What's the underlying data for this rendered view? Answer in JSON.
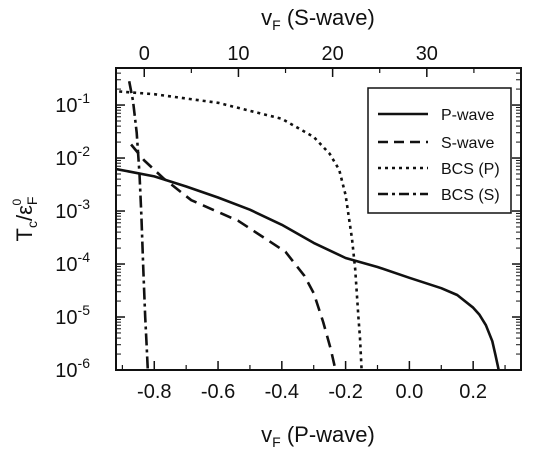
{
  "chart_data": {
    "type": "line",
    "x_label": "v_F (P-wave)",
    "x2_label": "v_F (S-wave)",
    "y_label": "T_c/ε_F^0",
    "x_range": [
      -0.92,
      0.35
    ],
    "x2_range": [
      -3.0,
      40.0
    ],
    "y_range": [
      1e-06,
      0.5
    ],
    "y_scale": "log",
    "x_ticks": [
      "-0.8",
      "-0.6",
      "-0.4",
      "-0.2",
      "0.0",
      "0.2"
    ],
    "x2_ticks": [
      "0",
      "10",
      "20",
      "30"
    ],
    "y_ticks": [
      {
        "base": "10",
        "exp": "-1",
        "value": 0.1
      },
      {
        "base": "10",
        "exp": "-2",
        "value": 0.01
      },
      {
        "base": "10",
        "exp": "-3",
        "value": 0.001
      },
      {
        "base": "10",
        "exp": "-4",
        "value": 0.0001
      },
      {
        "base": "10",
        "exp": "-5",
        "value": 1e-05
      },
      {
        "base": "10",
        "exp": "-6",
        "value": 1e-06
      }
    ],
    "legend_position": "top-right",
    "series": [
      {
        "name": "P-wave",
        "axis": "bottom",
        "style": "solid",
        "x": [
          -0.92,
          -0.8,
          -0.7,
          -0.6,
          -0.5,
          -0.4,
          -0.3,
          -0.2,
          -0.1,
          0.0,
          0.1,
          0.15,
          0.2,
          0.22,
          0.24,
          0.26,
          0.27,
          0.28
        ],
        "y": [
          0.0062,
          0.0045,
          0.0029,
          0.0018,
          0.00106,
          0.00055,
          0.00025,
          0.00013,
          8.8e-05,
          5.5e-05,
          3.5e-05,
          2.6e-05,
          1.5e-05,
          1.1e-05,
          7e-06,
          3.5e-06,
          1.9e-06,
          1e-06
        ]
      },
      {
        "name": "S-wave",
        "axis": "top",
        "style": "dashed",
        "x": [
          -1.4,
          0.0,
          2.0,
          5.0,
          10.0,
          15.0,
          17.0,
          18.0,
          19.0,
          19.8,
          20.3
        ],
        "y": [
          0.018,
          0.009,
          0.0042,
          0.0016,
          0.00065,
          0.00017,
          6e-05,
          2.8e-05,
          8e-06,
          2.5e-06,
          1e-06
        ]
      },
      {
        "name": "BCS (P)",
        "axis": "bottom",
        "style": "dotted",
        "x": [
          -0.91,
          -0.8,
          -0.6,
          -0.4,
          -0.3,
          -0.25,
          -0.22,
          -0.2,
          -0.18,
          -0.17,
          -0.16,
          -0.155,
          -0.15
        ],
        "y": [
          0.18,
          0.16,
          0.11,
          0.055,
          0.025,
          0.012,
          0.006,
          0.002,
          0.0003,
          8e-05,
          1e-05,
          4e-06,
          1e-06
        ]
      },
      {
        "name": "BCS (S)",
        "axis": "top",
        "style": "dashdot",
        "x": [
          -1.6,
          -1.2,
          -0.8,
          -0.5,
          -0.3,
          -0.1,
          0.1,
          0.25,
          0.38
        ],
        "y": [
          0.28,
          0.12,
          0.03,
          0.005,
          0.0008,
          8e-05,
          1e-05,
          3e-06,
          1e-06
        ]
      }
    ]
  }
}
